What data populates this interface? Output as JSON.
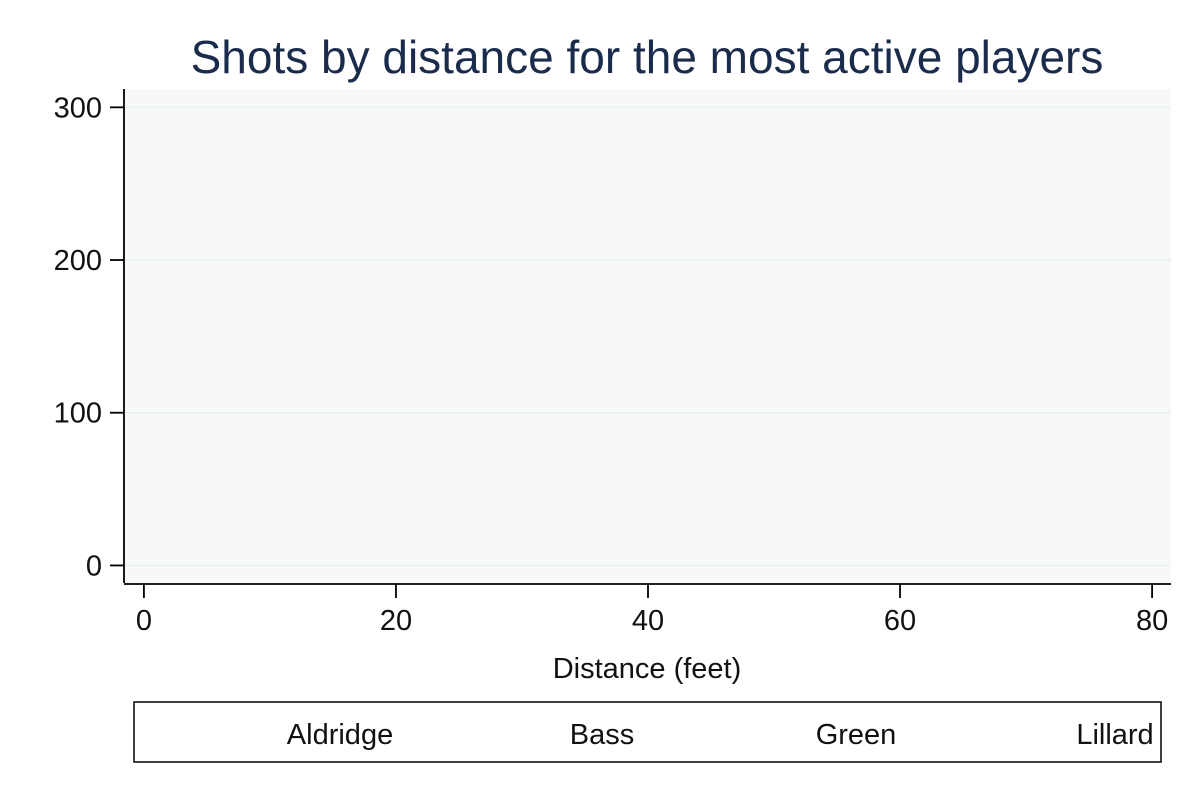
{
  "chart_data": {
    "type": "line",
    "title": "Shots by distance for the most active players",
    "xlabel": "Distance (feet)",
    "ylabel": "",
    "xlim": [
      -1.5,
      81.5
    ],
    "ylim": [
      -11.5,
      312
    ],
    "x_ticks": [
      0,
      20,
      40,
      60,
      80
    ],
    "y_ticks": [
      0,
      100,
      200,
      300
    ],
    "grid": true,
    "legend_position": "bottom",
    "series": [
      {
        "name": "Aldridge",
        "x": [],
        "values": []
      },
      {
        "name": "Bass",
        "x": [],
        "values": []
      },
      {
        "name": "Green",
        "x": [],
        "values": []
      },
      {
        "name": "Lillard",
        "x": [],
        "values": []
      }
    ],
    "colors": {
      "plot_background": "#f7f9f9",
      "gridline": "#e9eff1",
      "axis": "#000000",
      "title": "#1a2b4c"
    }
  }
}
